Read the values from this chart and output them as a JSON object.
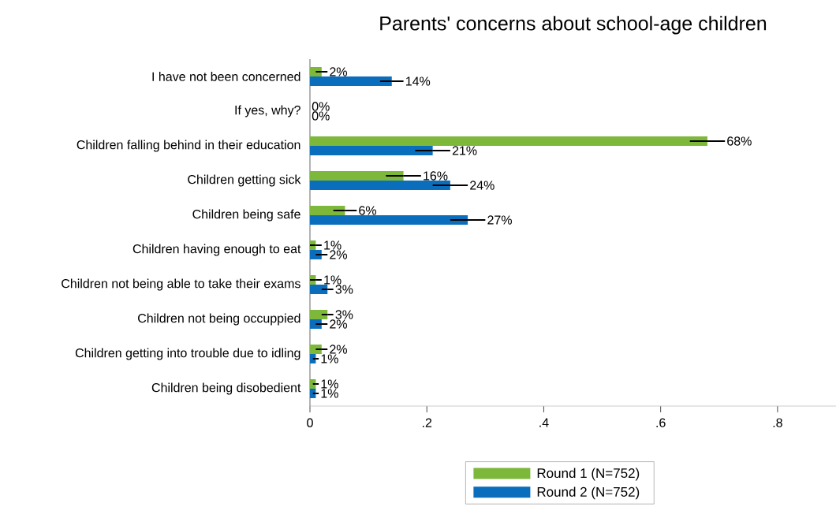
{
  "chart_data": {
    "type": "bar",
    "orientation": "horizontal",
    "title": "Parents' concerns about school-age children",
    "categories": [
      "I have not been concerned",
      "If yes, why?",
      "Children falling behind in their education",
      "Children getting sick",
      "Children being safe",
      "Children having enough to eat",
      "Children not being able to take their exams",
      "Children not being occuppied",
      "Children getting into trouble due to idling",
      "Children being disobedient"
    ],
    "series": [
      {
        "name": "Round 1 (N=752)",
        "color": "#7db83a",
        "values": [
          0.02,
          0,
          0.68,
          0.16,
          0.06,
          0.01,
          0.01,
          0.03,
          0.02,
          0.01
        ],
        "errors": [
          0.01,
          null,
          0.03,
          0.03,
          0.02,
          0.01,
          0.01,
          0.01,
          0.01,
          0.005
        ],
        "value_labels": [
          "2%",
          "0%",
          "68%",
          "16%",
          "6%",
          "1%",
          "1%",
          "3%",
          "2%",
          "1%"
        ]
      },
      {
        "name": "Round 2 (N=752)",
        "color": "#0a6ebd",
        "values": [
          0.14,
          0,
          0.21,
          0.24,
          0.27,
          0.02,
          0.03,
          0.02,
          0.01,
          0.01
        ],
        "errors": [
          0.02,
          null,
          0.03,
          0.03,
          0.03,
          0.01,
          0.01,
          0.01,
          0.005,
          0.005
        ],
        "value_labels": [
          "14%",
          "0%",
          "21%",
          "24%",
          "27%",
          "2%",
          "3%",
          "2%",
          "1%",
          "1%"
        ]
      }
    ],
    "xlim": [
      0,
      0.9
    ],
    "xticks": [
      0,
      {
        "value": 0.2,
        "label": ".2"
      },
      {
        "value": 0.4,
        "label": ".4"
      },
      {
        "value": 0.6,
        "label": ".6"
      },
      {
        "value": 0.8,
        "label": ".8"
      }
    ],
    "legend": "bottom",
    "grid": false
  }
}
